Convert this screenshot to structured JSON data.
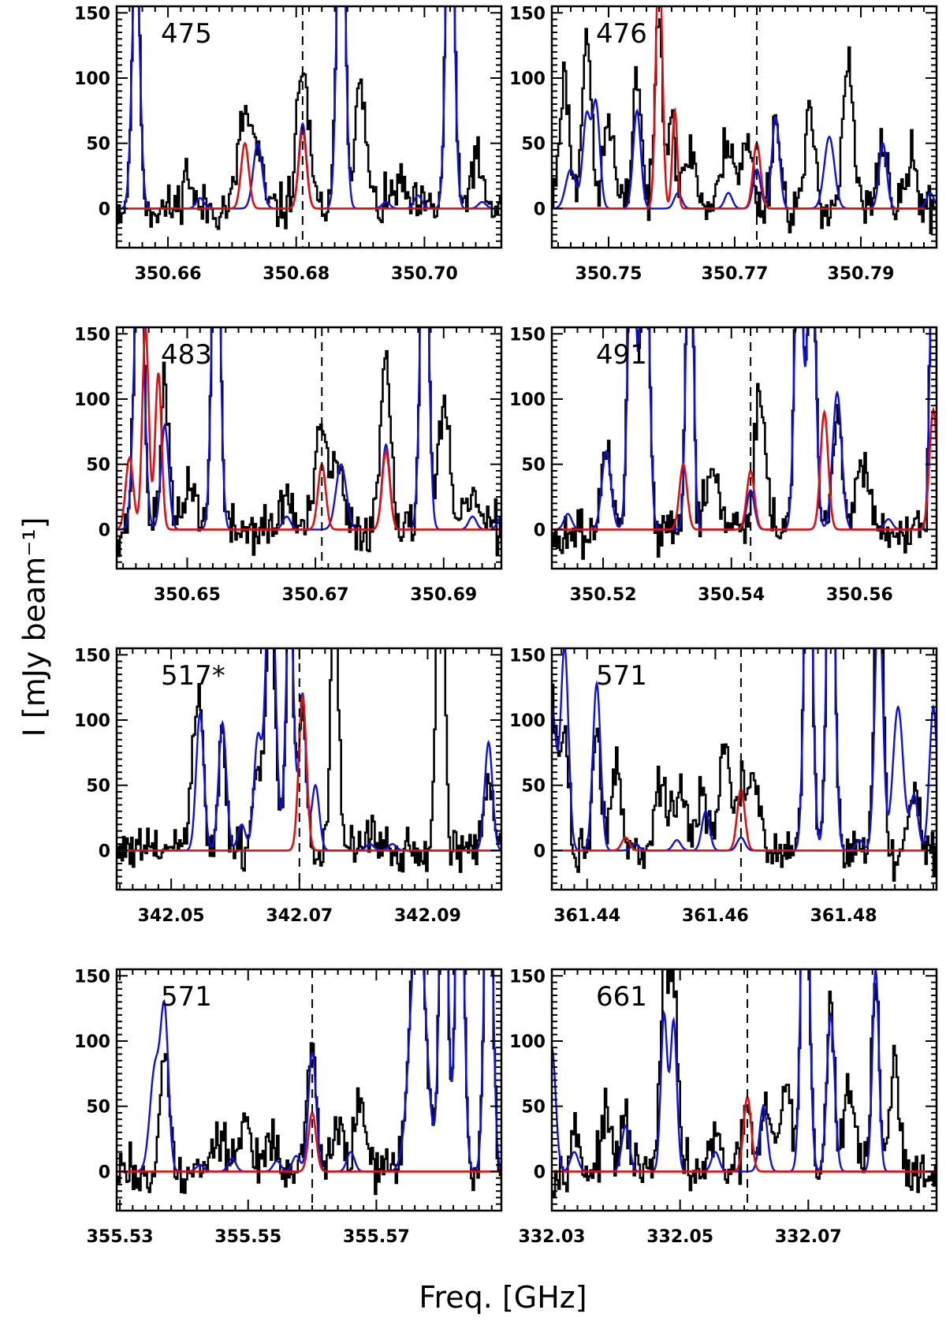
{
  "figure": {
    "ylabel": "I [mJy beam⁻¹]",
    "xlabel": "Freq. [GHz]",
    "ytick_labels": [
      "0",
      "50",
      "100",
      "150"
    ]
  },
  "colors": {
    "observed": "#000000",
    "model_total": "#1010e0",
    "model_species": "#e01010"
  },
  "chart_data": [
    {
      "type": "line",
      "label": "475",
      "xlim": [
        350.652,
        350.712
      ],
      "ylim": [
        -30,
        155
      ],
      "xticks": [
        350.66,
        350.68,
        350.7
      ],
      "xtick_labels": [
        "350.66",
        "350.68",
        "350.70"
      ],
      "yticks": [
        0,
        50,
        100,
        150
      ],
      "dashed_line_x": 350.681,
      "seed": 11,
      "blue_lines": [
        [
          350.655,
          200,
          0.0006
        ],
        [
          350.665,
          8,
          0.0006
        ],
        [
          350.674,
          50,
          0.0007
        ],
        [
          350.681,
          65,
          0.0006
        ],
        [
          350.687,
          300,
          0.0006
        ],
        [
          350.694,
          5,
          0.0006
        ],
        [
          350.699,
          10,
          0.0006
        ],
        [
          350.704,
          300,
          0.0006
        ],
        [
          350.709,
          5,
          0.0006
        ]
      ],
      "red_lines": [
        [
          350.672,
          50,
          0.0006
        ],
        [
          350.681,
          60,
          0.0006
        ]
      ],
      "obs_peaks": [
        [
          350.655,
          200,
          0.0006
        ],
        [
          350.663,
          28,
          0.0007
        ],
        [
          350.672,
          72,
          0.001
        ],
        [
          350.674,
          35,
          0.0008
        ],
        [
          350.681,
          110,
          0.0009
        ],
        [
          350.687,
          300,
          0.0006
        ],
        [
          350.69,
          90,
          0.0009
        ],
        [
          350.696,
          18,
          0.001
        ],
        [
          350.704,
          300,
          0.0006
        ],
        [
          350.708,
          40,
          0.0008
        ]
      ]
    },
    {
      "type": "line",
      "label": "476",
      "xlim": [
        350.741,
        350.802
      ],
      "ylim": [
        -30,
        155
      ],
      "xticks": [
        350.75,
        350.77,
        350.79
      ],
      "xtick_labels": [
        "350.75",
        "350.77",
        "350.79"
      ],
      "yticks": [
        0,
        50,
        100,
        150
      ],
      "dashed_line_x": 350.7735,
      "seed": 23,
      "blue_lines": [
        [
          350.744,
          30,
          0.0008
        ],
        [
          350.7465,
          70,
          0.0006
        ],
        [
          350.748,
          80,
          0.0006
        ],
        [
          350.7545,
          75,
          0.0006
        ],
        [
          350.761,
          12,
          0.0006
        ],
        [
          350.769,
          12,
          0.0006
        ],
        [
          350.7735,
          30,
          0.0006
        ],
        [
          350.7765,
          70,
          0.0006
        ],
        [
          350.785,
          55,
          0.0008
        ],
        [
          350.7935,
          50,
          0.0006
        ],
        [
          350.801,
          12,
          0.0006
        ]
      ],
      "red_lines": [
        [
          350.758,
          200,
          0.0005
        ],
        [
          350.7605,
          75,
          0.0004
        ],
        [
          350.7735,
          50,
          0.0006
        ]
      ],
      "obs_peaks": [
        [
          350.743,
          100,
          0.0008
        ],
        [
          350.7465,
          140,
          0.0007
        ],
        [
          350.75,
          70,
          0.0008
        ],
        [
          350.7545,
          105,
          0.0007
        ],
        [
          350.758,
          155,
          0.0006
        ],
        [
          350.76,
          75,
          0.0006
        ],
        [
          350.763,
          45,
          0.0009
        ],
        [
          350.769,
          55,
          0.001
        ],
        [
          350.772,
          50,
          0.0008
        ],
        [
          350.7765,
          70,
          0.0007
        ],
        [
          350.782,
          70,
          0.0008
        ],
        [
          350.788,
          110,
          0.0008
        ],
        [
          350.7935,
          55,
          0.0007
        ],
        [
          350.798,
          38,
          0.0008
        ]
      ]
    },
    {
      "type": "line",
      "label": "483",
      "xlim": [
        350.639,
        350.699
      ],
      "ylim": [
        -30,
        155
      ],
      "xticks": [
        350.65,
        350.67,
        350.69
      ],
      "xtick_labels": [
        "350.65",
        "350.67",
        "350.69"
      ],
      "yticks": [
        0,
        50,
        100,
        150
      ],
      "dashed_line_x": 350.671,
      "seed": 37,
      "blue_lines": [
        [
          350.6425,
          250,
          0.0007
        ],
        [
          350.6465,
          80,
          0.0006
        ],
        [
          350.6545,
          300,
          0.0006
        ],
        [
          350.6655,
          10,
          0.0006
        ],
        [
          350.674,
          50,
          0.0008
        ],
        [
          350.681,
          65,
          0.0006
        ],
        [
          350.687,
          300,
          0.0006
        ],
        [
          350.6945,
          10,
          0.0006
        ],
        [
          350.699,
          10,
          0.0006
        ]
      ],
      "red_lines": [
        [
          350.641,
          55,
          0.0006
        ],
        [
          350.6435,
          155,
          0.0005
        ],
        [
          350.6455,
          120,
          0.0005
        ],
        [
          350.671,
          50,
          0.0006
        ],
        [
          350.681,
          60,
          0.0006
        ]
      ],
      "obs_peaks": [
        [
          350.6425,
          250,
          0.0007
        ],
        [
          350.6465,
          120,
          0.0006
        ],
        [
          350.6505,
          38,
          0.0009
        ],
        [
          350.6545,
          300,
          0.0006
        ],
        [
          350.6655,
          28,
          0.0008
        ],
        [
          350.671,
          75,
          0.001
        ],
        [
          350.6735,
          45,
          0.0008
        ],
        [
          350.681,
          138,
          0.0008
        ],
        [
          350.687,
          300,
          0.0006
        ],
        [
          350.69,
          90,
          0.0009
        ],
        [
          350.6945,
          30,
          0.0008
        ]
      ]
    },
    {
      "type": "line",
      "label": "491",
      "xlim": [
        350.512,
        350.572
      ],
      "ylim": [
        -30,
        155
      ],
      "xticks": [
        350.52,
        350.54,
        350.56
      ],
      "xtick_labels": [
        "350.52",
        "350.54",
        "350.56"
      ],
      "yticks": [
        0,
        50,
        100,
        150
      ],
      "dashed_line_x": 350.543,
      "seed": 49,
      "blue_lines": [
        [
          350.5145,
          12,
          0.0006
        ],
        [
          350.5205,
          60,
          0.0007
        ],
        [
          350.5245,
          250,
          0.0006
        ],
        [
          350.5265,
          300,
          0.0006
        ],
        [
          350.5335,
          300,
          0.0005
        ],
        [
          350.543,
          30,
          0.0006
        ],
        [
          350.5505,
          250,
          0.0006
        ],
        [
          350.5525,
          250,
          0.0006
        ],
        [
          350.5565,
          105,
          0.0007
        ],
        [
          350.5645,
          8,
          0.0006
        ],
        [
          350.5715,
          250,
          0.0005
        ]
      ],
      "red_lines": [
        [
          350.5325,
          50,
          0.0006
        ],
        [
          350.543,
          45,
          0.0006
        ],
        [
          350.5545,
          90,
          0.0006
        ],
        [
          350.5715,
          92,
          0.0006
        ]
      ],
      "obs_peaks": [
        [
          350.5205,
          60,
          0.0007
        ],
        [
          350.5245,
          250,
          0.0006
        ],
        [
          350.5265,
          300,
          0.0006
        ],
        [
          350.5335,
          300,
          0.0005
        ],
        [
          350.537,
          40,
          0.0009
        ],
        [
          350.5445,
          110,
          0.0008
        ],
        [
          350.5505,
          250,
          0.0006
        ],
        [
          350.5525,
          250,
          0.0006
        ],
        [
          350.5565,
          90,
          0.0007
        ],
        [
          350.5605,
          45,
          0.0009
        ],
        [
          350.5715,
          250,
          0.0005
        ]
      ]
    },
    {
      "type": "line",
      "label": "517*",
      "xlim": [
        342.0415,
        342.1015
      ],
      "ylim": [
        -30,
        155
      ],
      "xticks": [
        342.05,
        342.07,
        342.09
      ],
      "xtick_labels": [
        "342.05",
        "342.07",
        "342.09"
      ],
      "yticks": [
        0,
        50,
        100,
        150
      ],
      "dashed_line_x": 342.07,
      "seed": 61,
      "blue_lines": [
        [
          342.0545,
          105,
          0.0006
        ],
        [
          342.058,
          98,
          0.0006
        ],
        [
          342.061,
          20,
          0.0006
        ],
        [
          342.0635,
          85,
          0.0006
        ],
        [
          342.0655,
          250,
          0.0007
        ],
        [
          342.0685,
          200,
          0.0006
        ],
        [
          342.0705,
          120,
          0.0005
        ],
        [
          342.0725,
          50,
          0.0006
        ],
        [
          342.081,
          5,
          0.0006
        ],
        [
          342.0845,
          5,
          0.0006
        ],
        [
          342.0995,
          83,
          0.0006
        ]
      ],
      "red_lines": [
        [
          342.0705,
          118,
          0.0006
        ]
      ],
      "obs_peaks": [
        [
          342.0535,
          55,
          0.0008
        ],
        [
          342.0545,
          85,
          0.0006
        ],
        [
          342.058,
          82,
          0.0006
        ],
        [
          342.0635,
          62,
          0.0007
        ],
        [
          342.0655,
          200,
          0.0007
        ],
        [
          342.0685,
          180,
          0.0006
        ],
        [
          342.0705,
          100,
          0.0006
        ],
        [
          342.0755,
          200,
          0.0006
        ],
        [
          342.081,
          15,
          0.0008
        ],
        [
          342.092,
          300,
          0.0006
        ],
        [
          342.0995,
          55,
          0.0007
        ]
      ]
    },
    {
      "type": "line",
      "label": "571",
      "xlim": [
        361.4345,
        361.4945
      ],
      "ylim": [
        -30,
        155
      ],
      "xticks": [
        361.44,
        361.46,
        361.48
      ],
      "xtick_labels": [
        "361.44",
        "361.46",
        "361.48"
      ],
      "yticks": [
        0,
        50,
        100,
        150
      ],
      "dashed_line_x": 361.464,
      "seed": 73,
      "blue_lines": [
        [
          361.4345,
          110,
          0.0007
        ],
        [
          361.4365,
          155,
          0.0006
        ],
        [
          361.4415,
          128,
          0.0006
        ],
        [
          361.4475,
          5,
          0.0006
        ],
        [
          361.454,
          8,
          0.0006
        ],
        [
          361.4585,
          30,
          0.0006
        ],
        [
          361.464,
          10,
          0.0006
        ],
        [
          361.4745,
          300,
          0.0006
        ],
        [
          361.478,
          300,
          0.0006
        ],
        [
          361.4825,
          8,
          0.0006
        ],
        [
          361.4855,
          200,
          0.0006
        ],
        [
          361.4885,
          110,
          0.0008
        ],
        [
          361.491,
          42,
          0.0006
        ],
        [
          361.494,
          110,
          0.0006
        ]
      ],
      "red_lines": [
        [
          361.446,
          10,
          0.0006
        ],
        [
          361.464,
          47,
          0.0006
        ]
      ],
      "obs_peaks": [
        [
          361.4345,
          120,
          0.0007
        ],
        [
          361.4365,
          90,
          0.0006
        ],
        [
          361.4415,
          95,
          0.0006
        ],
        [
          361.4445,
          70,
          0.0008
        ],
        [
          361.4515,
          45,
          0.0009
        ],
        [
          361.4545,
          50,
          0.0009
        ],
        [
          361.458,
          42,
          0.0008
        ],
        [
          361.4615,
          80,
          0.0009
        ],
        [
          361.464,
          40,
          0.0006
        ],
        [
          361.466,
          60,
          0.0009
        ],
        [
          361.4745,
          300,
          0.0006
        ],
        [
          361.478,
          300,
          0.0006
        ],
        [
          361.4855,
          300,
          0.0006
        ],
        [
          361.491,
          50,
          0.0008
        ]
      ]
    },
    {
      "type": "line",
      "label": "571",
      "xlim": [
        355.5295,
        355.5895
      ],
      "ylim": [
        -30,
        155
      ],
      "xticks": [
        355.53,
        355.55,
        355.57
      ],
      "xtick_labels": [
        "355.53",
        "355.55",
        "355.57"
      ],
      "yticks": [
        0,
        50,
        100,
        150
      ],
      "dashed_line_x": 355.56,
      "seed": 85,
      "blue_lines": [
        [
          355.5355,
          80,
          0.0008
        ],
        [
          355.537,
          115,
          0.0006
        ],
        [
          355.5425,
          5,
          0.0006
        ],
        [
          355.5475,
          10,
          0.0006
        ],
        [
          355.5545,
          8,
          0.0006
        ],
        [
          355.5575,
          12,
          0.0006
        ],
        [
          355.56,
          92,
          0.0006
        ],
        [
          355.566,
          15,
          0.0006
        ],
        [
          355.5765,
          200,
          0.0012
        ],
        [
          355.5805,
          300,
          0.0006
        ],
        [
          355.583,
          300,
          0.0006
        ],
        [
          355.5875,
          300,
          0.0006
        ]
      ],
      "red_lines": [
        [
          355.56,
          45,
          0.0006
        ]
      ],
      "obs_peaks": [
        [
          355.537,
          95,
          0.0007
        ],
        [
          355.5455,
          30,
          0.0009
        ],
        [
          355.5495,
          40,
          0.0008
        ],
        [
          355.5535,
          25,
          0.0009
        ],
        [
          355.56,
          92,
          0.0007
        ],
        [
          355.564,
          35,
          0.0009
        ],
        [
          355.5675,
          60,
          0.0008
        ],
        [
          355.5765,
          200,
          0.0012
        ],
        [
          355.5805,
          300,
          0.0006
        ],
        [
          355.583,
          300,
          0.0006
        ],
        [
          355.5875,
          300,
          0.0006
        ]
      ]
    },
    {
      "type": "line",
      "label": "661",
      "xlim": [
        332.03,
        332.09
      ],
      "ylim": [
        -30,
        155
      ],
      "xticks": [
        332.03,
        332.05,
        332.07
      ],
      "xtick_labels": [
        "332.03",
        "332.05",
        "332.07"
      ],
      "yticks": [
        0,
        50,
        100,
        150
      ],
      "dashed_line_x": 332.0605,
      "seed": 97,
      "blue_lines": [
        [
          332.03,
          95,
          0.0006
        ],
        [
          332.0335,
          15,
          0.0006
        ],
        [
          332.0415,
          35,
          0.0006
        ],
        [
          332.0475,
          120,
          0.0005
        ],
        [
          332.049,
          115,
          0.0005
        ],
        [
          332.0555,
          15,
          0.0006
        ],
        [
          332.063,
          50,
          0.0006
        ],
        [
          332.0695,
          300,
          0.0006
        ],
        [
          332.0735,
          120,
          0.0006
        ],
        [
          332.0805,
          155,
          0.0005
        ]
      ],
      "red_lines": [
        [
          332.0605,
          57,
          0.0006
        ]
      ],
      "obs_peaks": [
        [
          332.0335,
          30,
          0.0008
        ],
        [
          332.0385,
          40,
          0.0008
        ],
        [
          332.0415,
          38,
          0.0007
        ],
        [
          332.0475,
          155,
          0.0006
        ],
        [
          332.049,
          155,
          0.0006
        ],
        [
          332.0555,
          25,
          0.0008
        ],
        [
          332.0605,
          55,
          0.0006
        ],
        [
          332.0635,
          50,
          0.0007
        ],
        [
          332.0665,
          70,
          0.0008
        ],
        [
          332.0695,
          300,
          0.0006
        ],
        [
          332.0735,
          125,
          0.0006
        ],
        [
          332.0765,
          65,
          0.0009
        ],
        [
          332.0805,
          150,
          0.0006
        ],
        [
          332.0835,
          85,
          0.0007
        ]
      ]
    }
  ]
}
